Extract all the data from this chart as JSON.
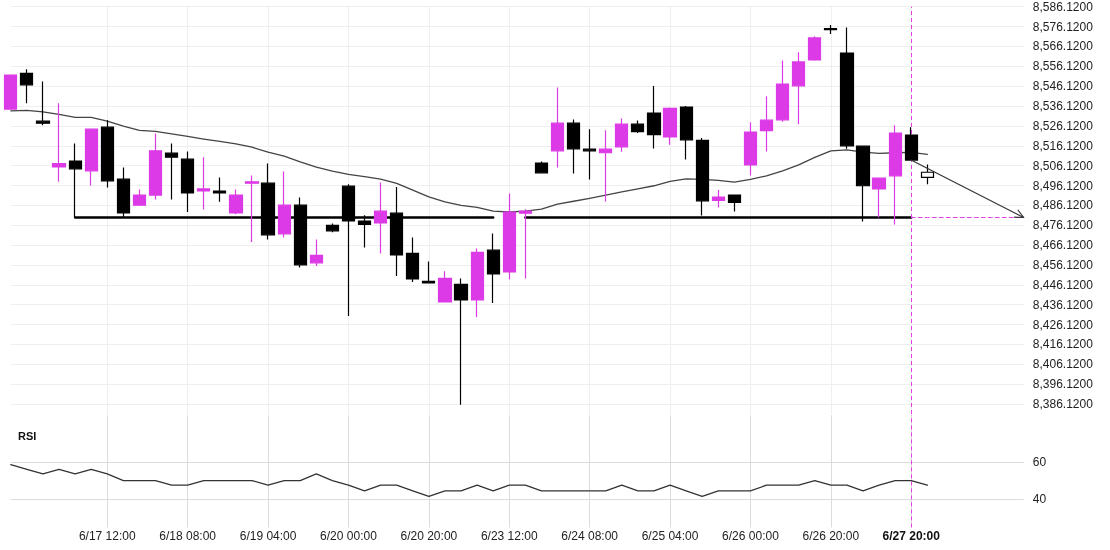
{
  "chart_data": [
    {
      "type": "candlestick",
      "categories": [
        null,
        null,
        null,
        null,
        null,
        null,
        "6/17 12:00",
        null,
        null,
        null,
        null,
        "6/18 08:00",
        null,
        null,
        null,
        null,
        "6/19 04:00",
        null,
        null,
        null,
        null,
        "6/20 00:00",
        null,
        null,
        null,
        null,
        "6/20 20:00",
        null,
        null,
        null,
        null,
        "6/23 12:00",
        null,
        null,
        null,
        null,
        "6/24 08:00",
        null,
        null,
        null,
        null,
        "6/25 04:00",
        null,
        null,
        null,
        null,
        "6/26 00:00",
        null,
        null,
        null,
        null,
        "6/26 20:00",
        null,
        null,
        null,
        null,
        "6/27 20:00",
        null,
        null,
        null,
        null,
        null,
        null,
        null
      ],
      "ylim": [
        8381.12,
        8586.12
      ],
      "yticks": [
        {
          "value": 8386.12,
          "label": "8,386.1200"
        },
        {
          "value": 8396.12,
          "label": "8,396.1200"
        },
        {
          "value": 8406.12,
          "label": "8,406.1200"
        },
        {
          "value": 8416.12,
          "label": "8,416.1200"
        },
        {
          "value": 8426.12,
          "label": "8,426.1200"
        },
        {
          "value": 8436.12,
          "label": "8,436.1200"
        },
        {
          "value": 8446.12,
          "label": "8,446.1200"
        },
        {
          "value": 8456.12,
          "label": "8,456.1200"
        },
        {
          "value": 8466.12,
          "label": "8,466.1200"
        },
        {
          "value": 8476.12,
          "label": "8,476.1200"
        },
        {
          "value": 8486.12,
          "label": "8,486.1200"
        },
        {
          "value": 8496.12,
          "label": "8,496.1200"
        },
        {
          "value": 8506.12,
          "label": "8,506.1200"
        },
        {
          "value": 8516.12,
          "label": "8,516.1200"
        },
        {
          "value": 8526.12,
          "label": "8,526.1200"
        },
        {
          "value": 8536.12,
          "label": "8,536.1200"
        },
        {
          "value": 8546.12,
          "label": "8,546.1200"
        },
        {
          "value": 8556.12,
          "label": "8,556.1200"
        },
        {
          "value": 8566.12,
          "label": "8,566.1200"
        },
        {
          "value": 8576.12,
          "label": "8,576.1200"
        },
        {
          "value": 8586.12,
          "label": "8,586.1200"
        }
      ],
      "grid": true,
      "tick_labels": "y",
      "ref_lines": [
        {
          "axis": "x",
          "value": "6/27 20:00",
          "color": "#e040e0",
          "line_style": "dashed"
        }
      ],
      "series": [
        {
          "ohlc": [
            [
              8534.6,
              8551.7,
              8534.6,
              8551.7
            ],
            [
              8552.6,
              8554.6,
              8537.5,
              8546.8
            ],
            [
              8528.5,
              8548.5,
              8526.4,
              8527.5
            ],
            [
              8505.5,
              8537.5,
              8498.0,
              8507.2
            ],
            [
              8508.4,
              8517.3,
              8480.3,
              8504.5
            ],
            [
              8503.5,
              8524.5,
              8496.1,
              8524.5
            ],
            [
              8525.5,
              8529.0,
              8495.1,
              8498.5
            ],
            [
              8499.3,
              8505.2,
              8480.3,
              8482.3
            ],
            [
              8486.2,
              8494.1,
              8485.9,
              8491.3
            ],
            [
              8491.3,
              8522.3,
              8489.1,
              8513.6
            ],
            [
              8512.4,
              8517.3,
              8489.1,
              8510.4
            ],
            [
              8509.4,
              8513.3,
              8482.8,
              8492.4
            ],
            [
              8493.4,
              8510.3,
              8484.1,
              8494.4
            ],
            [
              8493.3,
              8500.2,
              8487.9,
              8492.4
            ],
            [
              8482.3,
              8494.1,
              8481.7,
              8491.3
            ],
            [
              8497.3,
              8501.2,
              8467.7,
              8498.0
            ],
            [
              8497.3,
              8507.2,
              8468.9,
              8471.3
            ],
            [
              8471.8,
              8503.2,
              8469.9,
              8486.2
            ],
            [
              8486.2,
              8490.1,
              8454.8,
              8456.2
            ],
            [
              8457.2,
              8468.9,
              8455.6,
              8461.0
            ],
            [
              8476.1,
              8477.0,
              8472.6,
              8473.3
            ],
            [
              8495.8,
              8496.7,
              8430.4,
              8478.3
            ],
            [
              8478.2,
              8481.2,
              8464.9,
              8476.5
            ],
            [
              8477.3,
              8497.7,
              8461.9,
              8483.2
            ],
            [
              8482.2,
              8495.4,
              8450.6,
              8461.2
            ],
            [
              8462.0,
              8469.9,
              8447.6,
              8449.1
            ],
            [
              8447.9,
              8457.9,
              8447.1,
              8447.1
            ],
            [
              8437.5,
              8453.0,
              8437.2,
              8449.4
            ],
            [
              8446.4,
              8449.3,
              8385.8,
              8438.5
            ],
            [
              8438.5,
              8464.4,
              8430.0,
              8462.5
            ],
            [
              8463.6,
              8472.0,
              8437.0,
              8451.6
            ],
            [
              8452.6,
              8492.1,
              8448.8,
              8482.8
            ],
            [
              8482.2,
              8484.2,
              8449.3,
              8483.2
            ],
            [
              8507.4,
              8508.2,
              8502.2,
              8502.5
            ],
            [
              8513.6,
              8545.5,
              8505.2,
              8527.5
            ],
            [
              8527.5,
              8529.4,
              8502.2,
              8514.6
            ],
            [
              8514.4,
              8524.4,
              8499.2,
              8513.6
            ],
            [
              8512.6,
              8523.9,
              8488.1,
              8514.4
            ],
            [
              8515.6,
              8529.9,
              8513.1,
              8527.0
            ],
            [
              8527.0,
              8528.9,
              8522.6,
              8523.2
            ],
            [
              8532.6,
              8546.2,
              8514.8,
              8521.7
            ],
            [
              8520.6,
              8535.4,
              8516.6,
              8534.9
            ],
            [
              8535.6,
              8536.1,
              8509.2,
              8519.1
            ],
            [
              8518.8,
              8520.0,
              8481.0,
              8488.4
            ],
            [
              8488.6,
              8493.8,
              8485.1,
              8490.3
            ],
            [
              8491.3,
              8491.3,
              8483.0,
              8487.6
            ],
            [
              8506.5,
              8527.9,
              8501.2,
              8523.0
            ],
            [
              8523.7,
              8541.0,
              8513.3,
              8529.0
            ],
            [
              8529.2,
              8559.1,
              8528.2,
              8547.2
            ],
            [
              8546.3,
              8563.2,
              8526.9,
              8558.3
            ],
            [
              8559.3,
              8571.2,
              8558.9,
              8570.4
            ],
            [
              8575.1,
              8576.9,
              8572.4,
              8574.6
            ],
            [
              8562.8,
              8575.7,
              8514.6,
              8516.1
            ],
            [
              8515.9,
              8515.9,
              8478.0,
              8496.0
            ],
            [
              8494.4,
              8499.8,
              8480.0,
              8499.8
            ],
            [
              8501.0,
              8526.5,
              8476.5,
              8522.5
            ],
            [
              8521.5,
              8525.4,
              8508.9,
              8508.9
            ],
            [
              8500.2,
              8506.7,
              8496.7,
              8502.8
            ],
            null,
            null,
            null,
            null,
            null,
            null
          ],
          "colors": [
            "#dc3ae6",
            "#000000",
            "#000000",
            "#dc3ae6",
            "#000000",
            "#dc3ae6",
            "#000000",
            "#000000",
            "#dc3ae6",
            "#dc3ae6",
            "#000000",
            "#000000",
            "#dc3ae6",
            "#000000",
            "#dc3ae6",
            "#dc3ae6",
            "#000000",
            "#dc3ae6",
            "#000000",
            "#dc3ae6",
            "#000000",
            "#000000",
            "#000000",
            "#dc3ae6",
            "#000000",
            "#000000",
            "#000000",
            "#dc3ae6",
            "#000000",
            "#dc3ae6",
            "#000000",
            "#dc3ae6",
            "#dc3ae6",
            "#000000",
            "#dc3ae6",
            "#000000",
            "#000000",
            "#dc3ae6",
            "#dc3ae6",
            "#000000",
            "#000000",
            "#dc3ae6",
            "#000000",
            "#000000",
            "#dc3ae6",
            "#000000",
            "#dc3ae6",
            "#dc3ae6",
            "#dc3ae6",
            "#dc3ae6",
            "#dc3ae6",
            "#000000",
            "#000000",
            "#000000",
            "#dc3ae6",
            "#dc3ae6",
            "#000000",
            "#ffffff",
            null,
            null,
            null,
            null,
            null,
            null
          ]
        },
        {
          "type": "line",
          "color": "#444444",
          "values": [
            8533.7,
            8533.9,
            8533.2,
            8531.9,
            8530.4,
            8530.4,
            8528.5,
            8526.0,
            8523.9,
            8523.4,
            8522.1,
            8520.8,
            8519.5,
            8518.3,
            8517.1,
            8515.4,
            8512.9,
            8510.9,
            8508.0,
            8505.4,
            8503.4,
            8501.7,
            8500.6,
            8499.3,
            8497.2,
            8493.8,
            8490.4,
            8487.9,
            8486.1,
            8485.1,
            8483.2,
            8482.8,
            8483.2,
            8484.2,
            8486.7,
            8488.2,
            8489.7,
            8491.3,
            8492.9,
            8494.4,
            8496.0,
            8498.2,
            8499.5,
            8499.2,
            8498.7,
            8497.8,
            8499.2,
            8501.0,
            8503.5,
            8506.5,
            8510.3,
            8513.6,
            8514.1,
            8512.9,
            8512.3,
            8512.6,
            8512.8,
            8511.8,
            null,
            null,
            null,
            null,
            null,
            null
          ]
        },
        {
          "type": "line",
          "color": "#000000",
          "values": [
            null,
            null,
            null,
            null,
            8480,
            8480,
            8480,
            8480,
            8480,
            8480,
            8480,
            8480,
            8480,
            8480,
            8480,
            8480,
            8480,
            8480,
            8480,
            8480,
            8480,
            8480,
            8480,
            8480,
            8480,
            8480,
            8480,
            8480,
            8480,
            8480,
            8480,
            null,
            8480,
            8480,
            8480,
            8480,
            8480,
            8480,
            8480,
            8480,
            8480,
            8480,
            8480,
            8480,
            8480,
            8480,
            8480,
            8480,
            8480,
            8480,
            8480,
            8480,
            8480,
            8480,
            8480,
            8480,
            8480,
            null,
            null,
            null,
            null,
            null,
            null,
            null
          ]
        },
        {
          "type": "line",
          "color": "#e040e0",
          "line_style": "dashed",
          "values": [
            null,
            null,
            null,
            null,
            null,
            null,
            null,
            null,
            null,
            null,
            null,
            null,
            null,
            null,
            null,
            null,
            null,
            null,
            null,
            null,
            null,
            null,
            null,
            null,
            null,
            null,
            null,
            null,
            null,
            null,
            null,
            null,
            null,
            null,
            null,
            null,
            null,
            null,
            null,
            null,
            null,
            null,
            null,
            null,
            null,
            null,
            null,
            null,
            null,
            null,
            null,
            null,
            null,
            null,
            null,
            null,
            8480,
            8480,
            8480,
            8480,
            8480,
            8480,
            8480,
            8480
          ]
        }
      ]
    },
    {
      "type": "line",
      "title": "RSI",
      "categories": [
        null,
        null,
        null,
        null,
        null,
        null,
        "6/17 12:00",
        null,
        null,
        null,
        null,
        "6/18 08:00",
        null,
        null,
        null,
        null,
        "6/19 04:00",
        null,
        null,
        null,
        null,
        "6/20 00:00",
        null,
        null,
        null,
        null,
        "6/20 20:00",
        null,
        null,
        null,
        null,
        "6/23 12:00",
        null,
        null,
        null,
        null,
        "6/24 08:00",
        null,
        null,
        null,
        null,
        "6/25 04:00",
        null,
        null,
        null,
        null,
        "6/26 00:00",
        null,
        null,
        null,
        null,
        "6/26 20:00",
        null,
        null,
        null,
        null,
        "6/27 20:00",
        null,
        null,
        null,
        null,
        null,
        null,
        null
      ],
      "values": [
        58.5,
        56,
        53.5,
        56,
        53.5,
        56,
        53.5,
        50,
        50,
        50,
        47.5,
        47.5,
        50,
        50,
        50,
        50,
        47.5,
        50,
        50,
        53.5,
        50,
        47.5,
        44.5,
        47.5,
        47.5,
        44.5,
        41.5,
        44.5,
        44.5,
        47.5,
        44.5,
        47.5,
        47.5,
        44.5,
        44.5,
        44.5,
        44.5,
        44.5,
        47.5,
        44.5,
        44.5,
        47.5,
        44.5,
        41.5,
        44.5,
        44.5,
        44.5,
        47.5,
        47.5,
        47.5,
        50,
        47.5,
        47.5,
        44.5,
        47.5,
        50,
        50,
        47.5,
        null,
        null,
        null,
        null,
        null,
        null
      ],
      "color": "#333333",
      "ylim": [
        25,
        85
      ],
      "yticks": [
        40,
        60
      ],
      "grid": true,
      "ref_lines": [
        {
          "axis": "x",
          "value": "6/27 20:00",
          "color": "#e040e0",
          "line_style": "dashed"
        }
      ]
    }
  ]
}
